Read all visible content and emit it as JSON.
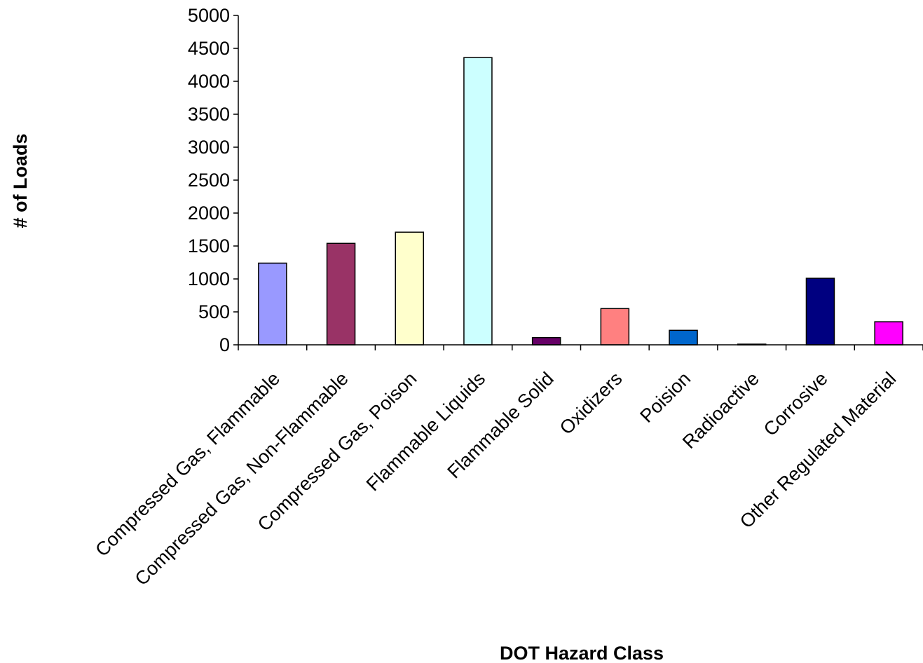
{
  "chart_data": {
    "type": "bar",
    "title": "",
    "xlabel": "DOT Hazard Class",
    "ylabel": "# of Loads",
    "categories": [
      "Compressed Gas, Flammable",
      "Compressed Gas, Non-Flammable",
      "Compressed Gas, Poison",
      "Flammable Liquids",
      "Flammable Solid",
      "Oxidizers",
      "Poision",
      "Radioactive",
      "Corrosive",
      "Other Regulated Material"
    ],
    "values": [
      1240,
      1540,
      1710,
      4360,
      110,
      550,
      220,
      10,
      1010,
      350
    ],
    "bar_colors": [
      "#9999ff",
      "#993366",
      "#ffffcc",
      "#ccffff",
      "#660066",
      "#ff8080",
      "#0066cc",
      "#ccccff",
      "#000080",
      "#ff00ff"
    ],
    "ylim": [
      0,
      5000
    ],
    "yticks": [
      0,
      500,
      1000,
      1500,
      2000,
      2500,
      3000,
      3500,
      4000,
      4500,
      5000
    ],
    "grid": false,
    "legend": "none"
  }
}
